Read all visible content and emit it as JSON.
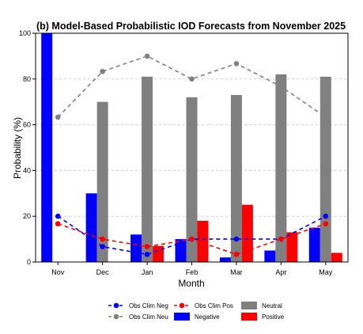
{
  "chart_data": {
    "type": "bar",
    "title": "(b) Model-Based Probabilistic IOD Forecasts from November 2025",
    "xlabel": "Month",
    "ylabel": "Probability (%)",
    "ylim": [
      0,
      100
    ],
    "yticks": [
      0,
      20,
      40,
      60,
      80,
      100
    ],
    "grid": "horizontal dashed",
    "legend_position": "bottom",
    "categories": [
      "Nov",
      "Dec",
      "Jan",
      "Feb",
      "Mar",
      "Apr",
      "May"
    ],
    "series": [
      {
        "name": "Negative",
        "kind": "bar",
        "color": "#0000ff",
        "values": [
          100,
          30,
          12,
          10,
          2,
          5,
          15
        ]
      },
      {
        "name": "Neutral",
        "kind": "bar",
        "color": "#808080",
        "values": [
          0,
          70,
          81,
          72,
          73,
          82,
          81
        ]
      },
      {
        "name": "Positive",
        "kind": "bar",
        "color": "#ff0000",
        "values": [
          0,
          0,
          7,
          18,
          25,
          13,
          4
        ]
      },
      {
        "name": "Obs Clim Neg",
        "kind": "line",
        "color": "#0000ff",
        "values": [
          20,
          6.7,
          3.3,
          10,
          10,
          10,
          20
        ]
      },
      {
        "name": "Obs Clim Neu",
        "kind": "line",
        "color": "#808080",
        "values": [
          63.3,
          83.3,
          90,
          80,
          86.7,
          76.7,
          63.3
        ]
      },
      {
        "name": "Obs Clim Pos",
        "kind": "line",
        "color": "#ff0000",
        "values": [
          16.7,
          10,
          6.7,
          10,
          3.3,
          10,
          16.7
        ]
      }
    ]
  }
}
